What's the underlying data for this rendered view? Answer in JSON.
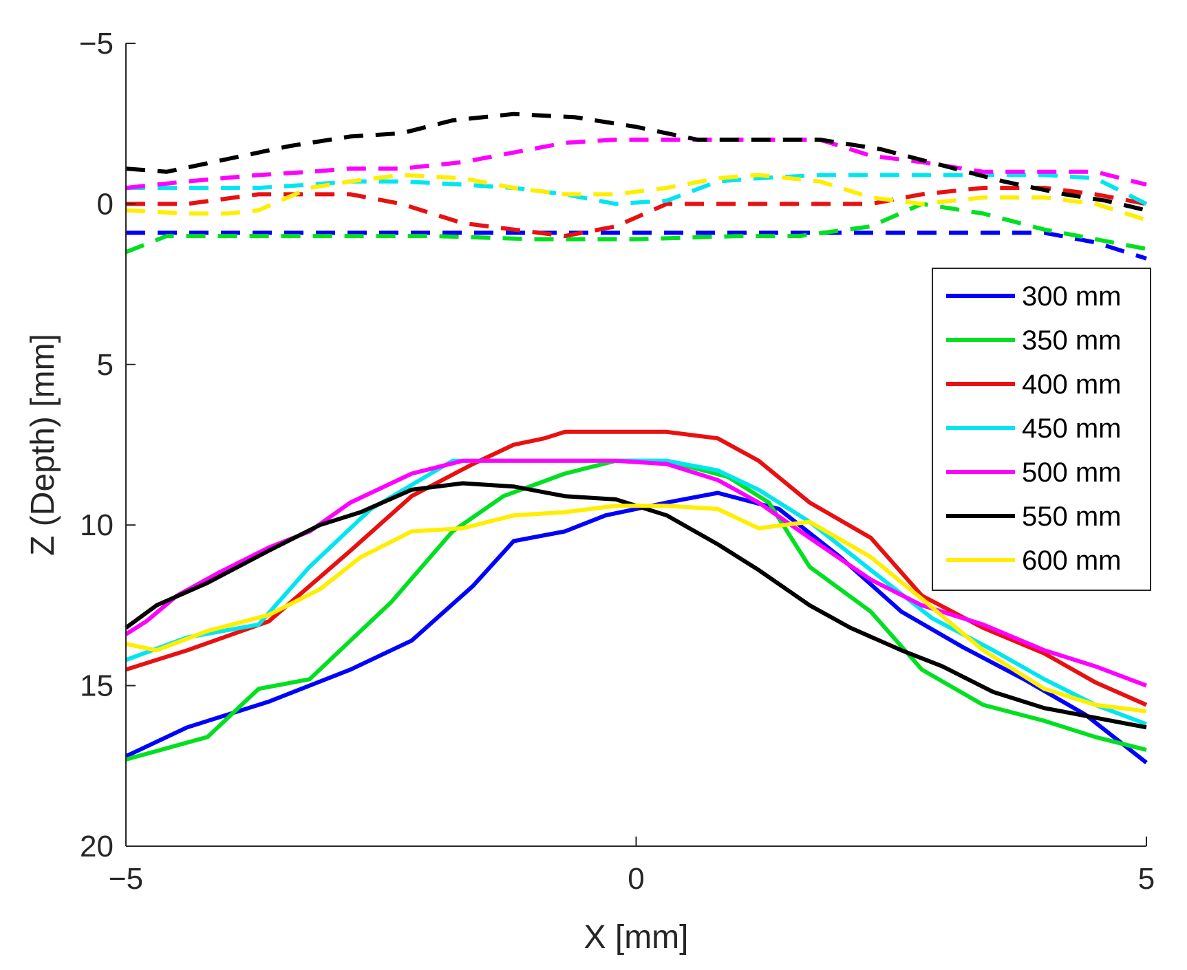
{
  "chart_data": {
    "type": "line",
    "title": "",
    "xlabel": "X [mm]",
    "ylabel": "Z (Depth) [mm]",
    "xlim": [
      -5,
      5
    ],
    "ylim": [
      -5,
      20
    ],
    "y_reversed": true,
    "xticks": [
      -5,
      0,
      5
    ],
    "yticks": [
      -5,
      0,
      5,
      10,
      15,
      20
    ],
    "grid": false,
    "legend_placement": "right",
    "series": [
      {
        "name": "300 mm",
        "color": "#0000FF",
        "style": "solid",
        "x": [
          -5,
          -4.4,
          -3.6,
          -2.8,
          -2.2,
          -1.6,
          -1.2,
          -0.7,
          -0.3,
          0.3,
          0.8,
          1.4,
          2.0,
          2.6,
          3.2,
          3.8,
          4.4,
          5
        ],
        "y": [
          17.2,
          16.3,
          15.5,
          14.5,
          13.6,
          11.9,
          10.5,
          10.2,
          9.7,
          9.3,
          9.0,
          9.5,
          11.0,
          12.7,
          13.8,
          14.8,
          15.9,
          17.4
        ]
      },
      {
        "name": "350 mm",
        "color": "#00E020",
        "style": "solid",
        "x": [
          -5,
          -4.2,
          -3.7,
          -3.2,
          -2.4,
          -1.8,
          -1.3,
          -0.7,
          -0.2,
          0.3,
          0.9,
          1.3,
          1.7,
          2.3,
          2.8,
          3.4,
          4.0,
          4.5,
          5
        ],
        "y": [
          17.3,
          16.6,
          15.1,
          14.8,
          12.4,
          10.2,
          9.1,
          8.4,
          8.0,
          8.0,
          8.5,
          9.3,
          11.3,
          12.7,
          14.5,
          15.6,
          16.1,
          16.6,
          17.0
        ]
      },
      {
        "name": "400 mm",
        "color": "#E81010",
        "style": "solid",
        "x": [
          -5,
          -4.4,
          -3.6,
          -2.8,
          -2.2,
          -1.6,
          -1.2,
          -0.9,
          -0.7,
          -0.3,
          0.3,
          0.8,
          1.2,
          1.7,
          2.3,
          2.8,
          3.4,
          4.0,
          4.5,
          5
        ],
        "y": [
          14.5,
          13.9,
          13.0,
          10.8,
          9.1,
          8.1,
          7.5,
          7.3,
          7.1,
          7.1,
          7.1,
          7.3,
          8.0,
          9.3,
          10.4,
          12.2,
          13.2,
          14.0,
          14.9,
          15.6
        ]
      },
      {
        "name": "450 mm",
        "color": "#00E6F0",
        "style": "solid",
        "x": [
          -5,
          -4.4,
          -3.7,
          -3.2,
          -2.6,
          -1.8,
          -1.2,
          -0.7,
          -0.2,
          0.3,
          0.8,
          1.2,
          1.7,
          2.3,
          2.9,
          3.5,
          4.0,
          4.5,
          5
        ],
        "y": [
          14.2,
          13.5,
          13.1,
          11.3,
          9.5,
          8.0,
          8.0,
          8.0,
          8.0,
          8.0,
          8.3,
          8.9,
          9.9,
          11.4,
          12.9,
          13.9,
          14.8,
          15.6,
          16.2
        ]
      },
      {
        "name": "500 mm",
        "color": "#FF00FF",
        "style": "solid",
        "x": [
          -5,
          -4.8,
          -4.5,
          -4.1,
          -3.6,
          -3.2,
          -2.8,
          -2.2,
          -1.7,
          -1.2,
          -0.7,
          -0.2,
          0.3,
          0.8,
          1.2,
          1.7,
          2.3,
          2.8,
          3.4,
          4.0,
          4.5,
          5
        ],
        "y": [
          13.4,
          13.0,
          12.2,
          11.5,
          10.7,
          10.2,
          9.3,
          8.4,
          8.0,
          8.0,
          8.0,
          8.0,
          8.1,
          8.6,
          9.3,
          10.4,
          11.7,
          12.5,
          13.1,
          13.9,
          14.4,
          15.0
        ]
      },
      {
        "name": "550 mm",
        "color": "#000000",
        "style": "solid",
        "x": [
          -5,
          -4.7,
          -4.2,
          -3.6,
          -3.1,
          -2.7,
          -2.2,
          -1.7,
          -1.2,
          -0.7,
          -0.2,
          0.3,
          0.8,
          1.2,
          1.7,
          2.1,
          2.6,
          3.0,
          3.5,
          4.0,
          4.5,
          5
        ],
        "y": [
          13.2,
          12.5,
          11.8,
          10.8,
          10.0,
          9.6,
          8.9,
          8.7,
          8.8,
          9.1,
          9.2,
          9.7,
          10.6,
          11.4,
          12.5,
          13.2,
          13.9,
          14.4,
          15.2,
          15.7,
          16.0,
          16.3
        ]
      },
      {
        "name": "600 mm",
        "color": "#FFEE00",
        "style": "solid",
        "x": [
          -5,
          -4.7,
          -4.2,
          -3.6,
          -3.1,
          -2.7,
          -2.2,
          -1.7,
          -1.2,
          -0.7,
          -0.2,
          0.3,
          0.8,
          1.2,
          1.7,
          2.3,
          2.8,
          3.4,
          4.0,
          4.5,
          5
        ],
        "y": [
          13.7,
          13.9,
          13.3,
          12.8,
          12.0,
          11.0,
          10.2,
          10.1,
          9.7,
          9.6,
          9.4,
          9.4,
          9.5,
          10.1,
          9.9,
          11.0,
          12.3,
          13.9,
          15.1,
          15.6,
          15.8
        ]
      },
      {
        "name": "",
        "color": "#0000FF",
        "style": "dashed",
        "x": [
          -5,
          -4.0,
          -3.0,
          -2.0,
          -1.0,
          0.0,
          1.0,
          2.0,
          3.0,
          4.0,
          4.5,
          5
        ],
        "y": [
          0.9,
          0.9,
          0.9,
          0.9,
          0.9,
          0.9,
          0.9,
          0.9,
          0.9,
          0.9,
          1.2,
          1.7
        ]
      },
      {
        "name": "",
        "color": "#00E020",
        "style": "dashed",
        "x": [
          -5,
          -4.6,
          -4.0,
          -3.0,
          -2.0,
          -1.0,
          0.0,
          1.0,
          1.6,
          2.3,
          2.8,
          3.4,
          4.0,
          4.5,
          5
        ],
        "y": [
          1.5,
          1.0,
          1.0,
          1.0,
          1.0,
          1.1,
          1.1,
          1.0,
          1.0,
          0.7,
          0.0,
          0.3,
          0.8,
          1.1,
          1.4
        ]
      },
      {
        "name": "",
        "color": "#E81010",
        "style": "dashed",
        "x": [
          -5,
          -4.4,
          -3.7,
          -3.2,
          -2.8,
          -2.3,
          -1.7,
          -1.2,
          -0.7,
          -0.2,
          0.3,
          0.8,
          1.2,
          1.8,
          2.3,
          2.8,
          3.4,
          4.0,
          4.5,
          5
        ],
        "y": [
          0.0,
          0.0,
          -0.3,
          -0.3,
          -0.3,
          0.0,
          0.6,
          0.8,
          1.0,
          0.7,
          0.0,
          0.0,
          0.0,
          0.0,
          0.0,
          -0.3,
          -0.5,
          -0.5,
          -0.3,
          0.0
        ]
      },
      {
        "name": "",
        "color": "#00E6F0",
        "style": "dashed",
        "x": [
          -5,
          -4.4,
          -3.7,
          -3.2,
          -2.8,
          -2.3,
          -1.7,
          -1.2,
          -0.7,
          -0.2,
          0.3,
          0.8,
          1.2,
          1.8,
          2.3,
          2.8,
          3.4,
          4.0,
          4.5,
          5
        ],
        "y": [
          -0.5,
          -0.5,
          -0.5,
          -0.6,
          -0.7,
          -0.7,
          -0.6,
          -0.5,
          -0.3,
          0.0,
          -0.1,
          -0.7,
          -0.8,
          -0.9,
          -0.9,
          -0.9,
          -0.9,
          -0.9,
          -0.8,
          0.0
        ]
      },
      {
        "name": "",
        "color": "#FF00FF",
        "style": "dashed",
        "x": [
          -5,
          -4.4,
          -3.7,
          -3.2,
          -2.8,
          -2.3,
          -1.7,
          -1.2,
          -0.7,
          -0.2,
          0.3,
          0.8,
          1.2,
          1.8,
          2.3,
          2.8,
          3.4,
          4.0,
          4.5,
          5
        ],
        "y": [
          -0.5,
          -0.7,
          -0.9,
          -1.0,
          -1.1,
          -1.1,
          -1.3,
          -1.6,
          -1.9,
          -2.0,
          -2.0,
          -2.0,
          -2.0,
          -2.0,
          -1.5,
          -1.3,
          -1.0,
          -1.0,
          -1.0,
          -0.6
        ]
      },
      {
        "name": "",
        "color": "#000000",
        "style": "dashed",
        "x": [
          -5,
          -4.6,
          -4.0,
          -3.4,
          -2.8,
          -2.3,
          -1.8,
          -1.2,
          -0.6,
          0.0,
          0.6,
          1.2,
          1.8,
          2.4,
          3.0,
          3.6,
          4.2,
          4.6,
          5
        ],
        "y": [
          -1.1,
          -1.0,
          -1.4,
          -1.8,
          -2.1,
          -2.2,
          -2.6,
          -2.8,
          -2.7,
          -2.4,
          -2.0,
          -2.0,
          -2.0,
          -1.7,
          -1.2,
          -0.7,
          -0.3,
          -0.1,
          0.2
        ]
      },
      {
        "name": "",
        "color": "#FFEE00",
        "style": "dashed",
        "x": [
          -5,
          -4.4,
          -4.0,
          -3.7,
          -3.2,
          -2.8,
          -2.3,
          -1.7,
          -1.2,
          -0.7,
          -0.2,
          0.3,
          0.8,
          1.2,
          1.8,
          2.3,
          2.8,
          3.4,
          4.0,
          4.5,
          5
        ],
        "y": [
          0.2,
          0.3,
          0.3,
          0.2,
          -0.5,
          -0.7,
          -0.9,
          -0.8,
          -0.5,
          -0.3,
          -0.3,
          -0.5,
          -0.8,
          -0.9,
          -0.7,
          -0.2,
          0.0,
          -0.2,
          -0.2,
          0.0,
          0.5
        ]
      }
    ]
  }
}
